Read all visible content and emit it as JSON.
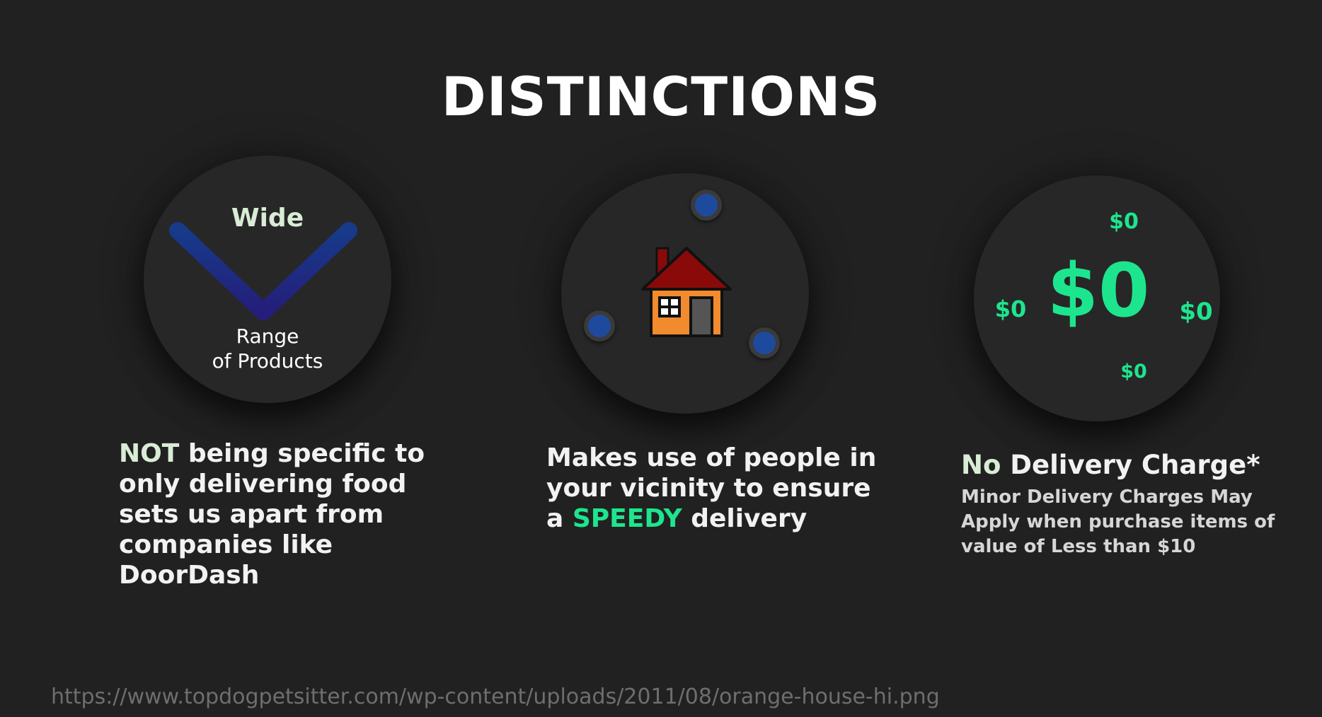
{
  "slide": {
    "title": "DISTINCTIONS"
  },
  "card_range": {
    "top_word": "Wide",
    "bottom_word_line1": "Range",
    "bottom_word_line2": "of Products",
    "chevron_color": "#1c2f86",
    "caption_highlight": "NOT",
    "caption_rest": " being specific to only delivering food sets us apart from companies like DoorDash"
  },
  "card_vicinity": {
    "center_icon": "house-icon",
    "dot_color": "#1e4a9e",
    "caption_part1": "Makes use of people in your vicinity to ensure a ",
    "caption_highlight": "SPEEDY",
    "caption_part2": " delivery"
  },
  "card_delivery": {
    "big_value": "$0",
    "small_top": "$0",
    "small_left": "$0",
    "small_right": "$0",
    "small_bottom": "$0",
    "accent_color": "#1de58e",
    "heading_highlight": "No",
    "heading_rest": " Delivery Charge*",
    "subtext": "Minor Delivery Charges May Apply when purchase items of value of Less than $10"
  },
  "footer": {
    "url": "https://www.topdogpetsitter.com/wp-content/uploads/2011/08/orange-house-hi.png"
  }
}
